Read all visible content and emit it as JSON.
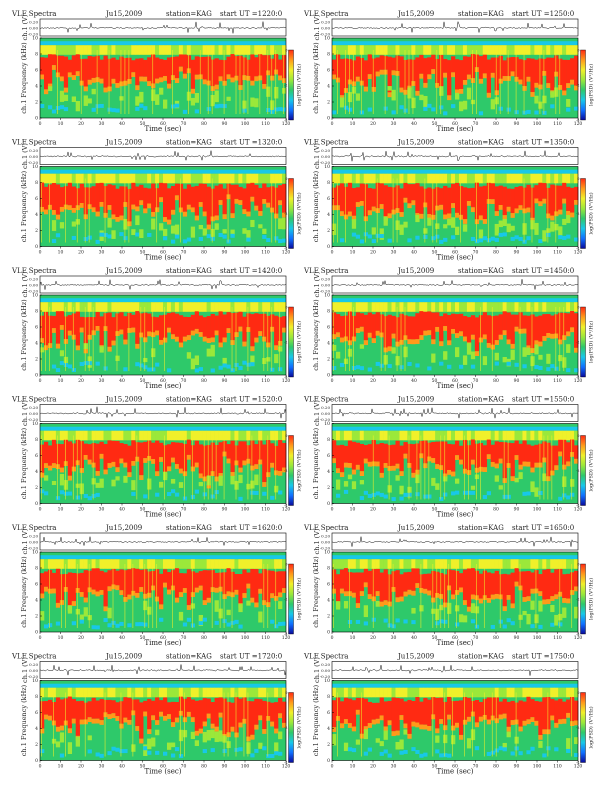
{
  "page": {
    "title": "VLF Spectra"
  },
  "colors": {
    "noise_band": "#18c8e8",
    "spectrogram_scale": [
      "#0a0a9a",
      "#1070ff",
      "#18c8e8",
      "#2ec96a",
      "#9be83a",
      "#f0f02a",
      "#ff9a1a",
      "#ff2a12"
    ]
  },
  "chart_data": [
    {
      "type": "heatmap",
      "title": "VLF Spectra",
      "date": "Ju15,2009",
      "station": "station=KAG",
      "start_ut": "start UT =1220:0",
      "amplitude_panel": {
        "ylabel": "ch.1 (V)",
        "ticks": [
          "0.20",
          "0.00",
          "-0.20"
        ],
        "ylim": [
          -0.2,
          0.2
        ]
      },
      "spectrogram_panel": {
        "ylabel": "ch.1 Frequency (kHz)",
        "yticks": [
          "0",
          "2",
          "4",
          "6",
          "8",
          "10"
        ],
        "ylim": [
          0,
          10
        ],
        "colorbar_label": "log(PSD) (V²/Hz)",
        "colorbar_ticks": [
          "0",
          "-2",
          "-4"
        ]
      },
      "x_axis": {
        "xlabel": "Time (sec)",
        "ticks": [
          "0",
          "10",
          "20",
          "30",
          "40",
          "50",
          "60",
          "70",
          "80",
          "90",
          "100",
          "110",
          "120"
        ],
        "xlim": [
          0,
          120
        ]
      }
    },
    {
      "type": "heatmap",
      "title": "VLF Spectra",
      "date": "Ju15,2009",
      "station": "station=KAG",
      "start_ut": "start UT =1250:0",
      "amplitude_panel": {
        "ylabel": "ch.1 (V)",
        "ticks": [
          "0.20",
          "0.00",
          "-0.20"
        ],
        "ylim": [
          -0.2,
          0.2
        ]
      },
      "spectrogram_panel": {
        "ylabel": "ch.1 Frequency (kHz)",
        "yticks": [
          "0",
          "2",
          "4",
          "6",
          "8",
          "10"
        ],
        "ylim": [
          0,
          10
        ],
        "colorbar_label": "log(PSD) (V²/Hz)",
        "colorbar_ticks": [
          "0",
          "-2",
          "-4"
        ]
      },
      "x_axis": {
        "xlabel": "Time (sec)",
        "ticks": [
          "0",
          "10",
          "20",
          "30",
          "40",
          "50",
          "60",
          "70",
          "80",
          "90",
          "100",
          "110",
          "120"
        ],
        "xlim": [
          0,
          120
        ]
      }
    },
    {
      "type": "heatmap",
      "title": "VLF Spectra",
      "date": "Ju15,2009",
      "station": "station=KAG",
      "start_ut": "start UT =1320:0",
      "amplitude_panel": {
        "ylabel": "ch.1 (V)",
        "ticks": [
          "0.20",
          "0.00",
          "-0.20"
        ],
        "ylim": [
          -0.2,
          0.2
        ]
      },
      "spectrogram_panel": {
        "ylabel": "ch.1 Frequency (kHz)",
        "yticks": [
          "0",
          "2",
          "4",
          "6",
          "8",
          "10"
        ],
        "ylim": [
          0,
          10
        ],
        "colorbar_label": "log(PSD) (V²/Hz)",
        "colorbar_ticks": [
          "0",
          "-2",
          "-4"
        ]
      },
      "x_axis": {
        "xlabel": "Time (sec)",
        "ticks": [
          "0",
          "10",
          "20",
          "30",
          "40",
          "50",
          "60",
          "70",
          "80",
          "90",
          "100",
          "110",
          "120"
        ],
        "xlim": [
          0,
          120
        ]
      }
    },
    {
      "type": "heatmap",
      "title": "VLF Spectra",
      "date": "Ju15,2009",
      "station": "station=KAG",
      "start_ut": "start UT =1350:0",
      "amplitude_panel": {
        "ylabel": "ch.1 (V)",
        "ticks": [
          "0.20",
          "0.00",
          "-0.20"
        ],
        "ylim": [
          -0.2,
          0.2
        ]
      },
      "spectrogram_panel": {
        "ylabel": "ch.1 Frequency (kHz)",
        "yticks": [
          "0",
          "2",
          "4",
          "6",
          "8",
          "10"
        ],
        "ylim": [
          0,
          10
        ],
        "colorbar_label": "log(PSD) (V²/Hz)",
        "colorbar_ticks": [
          "0",
          "-2",
          "-4"
        ]
      },
      "x_axis": {
        "xlabel": "Time (sec)",
        "ticks": [
          "0",
          "10",
          "20",
          "30",
          "40",
          "50",
          "60",
          "70",
          "80",
          "90",
          "100",
          "110",
          "120"
        ],
        "xlim": [
          0,
          120
        ]
      }
    },
    {
      "type": "heatmap",
      "title": "VLF Spectra",
      "date": "Ju15,2009",
      "station": "station=KAG",
      "start_ut": "start UT =1420:0",
      "amplitude_panel": {
        "ylabel": "ch.1 (V)",
        "ticks": [
          "0.20",
          "0.00",
          "-0.20"
        ],
        "ylim": [
          -0.2,
          0.2
        ]
      },
      "spectrogram_panel": {
        "ylabel": "ch.1 Frequency (kHz)",
        "yticks": [
          "0",
          "2",
          "4",
          "6",
          "8",
          "10"
        ],
        "ylim": [
          0,
          10
        ],
        "colorbar_label": "log(PSD) (V²/Hz)",
        "colorbar_ticks": [
          "0",
          "-2",
          "-4"
        ]
      },
      "x_axis": {
        "xlabel": "Time (sec)",
        "ticks": [
          "0",
          "10",
          "20",
          "30",
          "40",
          "50",
          "60",
          "70",
          "80",
          "90",
          "100",
          "110",
          "120"
        ],
        "xlim": [
          0,
          120
        ]
      }
    },
    {
      "type": "heatmap",
      "title": "VLF Spectra",
      "date": "Ju15,2009",
      "station": "station=KAG",
      "start_ut": "start UT =1450:0",
      "amplitude_panel": {
        "ylabel": "ch.1 (V)",
        "ticks": [
          "0.20",
          "0.00",
          "-0.20"
        ],
        "ylim": [
          -0.2,
          0.2
        ]
      },
      "spectrogram_panel": {
        "ylabel": "ch.1 Frequency (kHz)",
        "yticks": [
          "0",
          "2",
          "4",
          "6",
          "8",
          "10"
        ],
        "ylim": [
          0,
          10
        ],
        "colorbar_label": "log(PSD) (V²/Hz)",
        "colorbar_ticks": [
          "0",
          "-2",
          "-4"
        ]
      },
      "x_axis": {
        "xlabel": "Time (sec)",
        "ticks": [
          "0",
          "10",
          "20",
          "30",
          "40",
          "50",
          "60",
          "70",
          "80",
          "90",
          "100",
          "110",
          "120"
        ],
        "xlim": [
          0,
          120
        ]
      }
    },
    {
      "type": "heatmap",
      "title": "VLF Spectra",
      "date": "Ju15,2009",
      "station": "station=KAG",
      "start_ut": "start UT =1520:0",
      "amplitude_panel": {
        "ylabel": "ch.1 (V)",
        "ticks": [
          "0.20",
          "0.00",
          "-0.20"
        ],
        "ylim": [
          -0.2,
          0.2
        ]
      },
      "spectrogram_panel": {
        "ylabel": "ch.1 Frequency (kHz)",
        "yticks": [
          "0",
          "2",
          "4",
          "6",
          "8",
          "10"
        ],
        "ylim": [
          0,
          10
        ],
        "colorbar_label": "log(PSD) (V²/Hz)",
        "colorbar_ticks": [
          "0",
          "-2",
          "-4"
        ]
      },
      "x_axis": {
        "xlabel": "Time (sec)",
        "ticks": [
          "0",
          "10",
          "20",
          "30",
          "40",
          "50",
          "60",
          "70",
          "80",
          "90",
          "100",
          "110",
          "120"
        ],
        "xlim": [
          0,
          120
        ]
      }
    },
    {
      "type": "heatmap",
      "title": "VLF Spectra",
      "date": "Ju15,2009",
      "station": "station=KAG",
      "start_ut": "start UT =1550:0",
      "amplitude_panel": {
        "ylabel": "ch.1 (V)",
        "ticks": [
          "0.20",
          "0.00",
          "-0.20"
        ],
        "ylim": [
          -0.2,
          0.2
        ]
      },
      "spectrogram_panel": {
        "ylabel": "ch.1 Frequency (kHz)",
        "yticks": [
          "0",
          "2",
          "4",
          "6",
          "8",
          "10"
        ],
        "ylim": [
          0,
          10
        ],
        "colorbar_label": "log(PSD) (V²/Hz)",
        "colorbar_ticks": [
          "0",
          "-2",
          "-4"
        ]
      },
      "x_axis": {
        "xlabel": "Time (sec)",
        "ticks": [
          "0",
          "10",
          "20",
          "30",
          "40",
          "50",
          "60",
          "70",
          "80",
          "90",
          "100",
          "110",
          "120"
        ],
        "xlim": [
          0,
          120
        ]
      }
    },
    {
      "type": "heatmap",
      "title": "VLF Spectra",
      "date": "Ju15,2009",
      "station": "station=KAG",
      "start_ut": "start UT =1620:0",
      "amplitude_panel": {
        "ylabel": "ch.1 (V)",
        "ticks": [
          "0.20",
          "0.00",
          "-0.20"
        ],
        "ylim": [
          -0.2,
          0.2
        ]
      },
      "spectrogram_panel": {
        "ylabel": "ch.1 Frequency (kHz)",
        "yticks": [
          "0",
          "2",
          "4",
          "6",
          "8",
          "10"
        ],
        "ylim": [
          0,
          10
        ],
        "colorbar_label": "log(PSD) (V²/Hz)",
        "colorbar_ticks": [
          "0",
          "-2",
          "-4"
        ]
      },
      "x_axis": {
        "xlabel": "Time (sec)",
        "ticks": [
          "0",
          "10",
          "20",
          "30",
          "40",
          "50",
          "60",
          "70",
          "80",
          "90",
          "100",
          "110",
          "120"
        ],
        "xlim": [
          0,
          120
        ]
      }
    },
    {
      "type": "heatmap",
      "title": "VLF Spectra",
      "date": "Ju15,2009",
      "station": "station=KAG",
      "start_ut": "start UT =1650:0",
      "amplitude_panel": {
        "ylabel": "ch.1 (V)",
        "ticks": [
          "0.20",
          "0.00",
          "-0.20"
        ],
        "ylim": [
          -0.2,
          0.2
        ]
      },
      "spectrogram_panel": {
        "ylabel": "ch.1 Frequency (kHz)",
        "yticks": [
          "0",
          "2",
          "4",
          "6",
          "8",
          "10"
        ],
        "ylim": [
          0,
          10
        ],
        "colorbar_label": "log(PSD) (V²/Hz)",
        "colorbar_ticks": [
          "0",
          "-2",
          "-4"
        ]
      },
      "x_axis": {
        "xlabel": "Time (sec)",
        "ticks": [
          "0",
          "10",
          "20",
          "30",
          "40",
          "50",
          "60",
          "70",
          "80",
          "90",
          "100",
          "110",
          "120"
        ],
        "xlim": [
          0,
          120
        ]
      }
    },
    {
      "type": "heatmap",
      "title": "VLF Spectra",
      "date": "Ju15,2009",
      "station": "station=KAG",
      "start_ut": "start UT =1720:0",
      "amplitude_panel": {
        "ylabel": "ch.1 (V)",
        "ticks": [
          "0.20",
          "0.00",
          "-0.20"
        ],
        "ylim": [
          -0.2,
          0.2
        ]
      },
      "spectrogram_panel": {
        "ylabel": "ch.1 Frequency (kHz)",
        "yticks": [
          "0",
          "2",
          "4",
          "6",
          "8",
          "10"
        ],
        "ylim": [
          0,
          10
        ],
        "colorbar_label": "log(PSD) (V²/Hz)",
        "colorbar_ticks": [
          "0",
          "-2",
          "-4"
        ]
      },
      "x_axis": {
        "xlabel": "Time (sec)",
        "ticks": [
          "0",
          "10",
          "20",
          "30",
          "40",
          "50",
          "60",
          "70",
          "80",
          "90",
          "100",
          "110",
          "120"
        ],
        "xlim": [
          0,
          120
        ]
      }
    },
    {
      "type": "heatmap",
      "title": "VLF Spectra",
      "date": "Ju15,2009",
      "station": "station=KAG",
      "start_ut": "start UT =1750:0",
      "amplitude_panel": {
        "ylabel": "ch.1 (V)",
        "ticks": [
          "0.20",
          "0.00",
          "-0.20"
        ],
        "ylim": [
          -0.2,
          0.2
        ]
      },
      "spectrogram_panel": {
        "ylabel": "ch.1 Frequency (kHz)",
        "yticks": [
          "0",
          "2",
          "4",
          "6",
          "8",
          "10"
        ],
        "ylim": [
          0,
          10
        ],
        "colorbar_label": "log(PSD) (V²/Hz)",
        "colorbar_ticks": [
          "0",
          "-2",
          "-4"
        ]
      },
      "x_axis": {
        "xlabel": "Time (sec)",
        "ticks": [
          "0",
          "10",
          "20",
          "30",
          "40",
          "50",
          "60",
          "70",
          "80",
          "90",
          "100",
          "110",
          "120"
        ],
        "xlim": [
          0,
          120
        ]
      }
    }
  ]
}
